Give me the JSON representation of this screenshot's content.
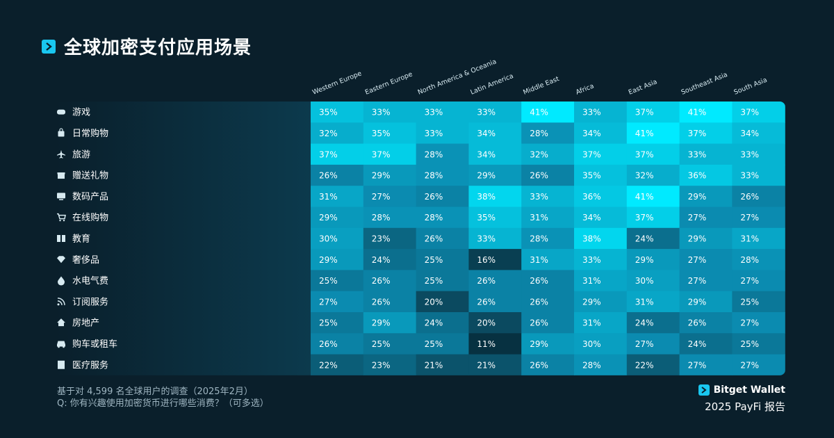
{
  "title": "全球加密支付应用场景",
  "chart_data": {
    "type": "heatmap",
    "columns": [
      "Western Europe",
      "Eastern Europe",
      "North America & Oceania",
      "Latin America",
      "Middle East",
      "Africa",
      "East Asia",
      "Southeast Asia",
      "South Asia"
    ],
    "rows": [
      {
        "label": "游戏",
        "icon": "gamepad-icon",
        "values": [
          35,
          33,
          33,
          33,
          41,
          33,
          37,
          41,
          37
        ]
      },
      {
        "label": "日常购物",
        "icon": "shopping-bag-icon",
        "values": [
          32,
          35,
          33,
          34,
          28,
          34,
          41,
          37,
          34
        ]
      },
      {
        "label": "旅游",
        "icon": "airplane-icon",
        "values": [
          37,
          37,
          28,
          34,
          32,
          37,
          37,
          33,
          33
        ]
      },
      {
        "label": "赠送礼物",
        "icon": "gift-icon",
        "values": [
          26,
          29,
          28,
          29,
          26,
          35,
          32,
          36,
          33
        ]
      },
      {
        "label": "数码产品",
        "icon": "monitor-icon",
        "values": [
          31,
          27,
          26,
          38,
          33,
          36,
          41,
          29,
          26
        ]
      },
      {
        "label": "在线购物",
        "icon": "cart-icon",
        "values": [
          29,
          28,
          28,
          35,
          31,
          34,
          37,
          27,
          27
        ]
      },
      {
        "label": "教育",
        "icon": "book-icon",
        "values": [
          30,
          23,
          26,
          33,
          28,
          38,
          24,
          29,
          31
        ]
      },
      {
        "label": "奢侈品",
        "icon": "diamond-icon",
        "values": [
          29,
          24,
          25,
          16,
          31,
          33,
          29,
          27,
          28
        ]
      },
      {
        "label": "水电气费",
        "icon": "droplet-icon",
        "values": [
          25,
          26,
          25,
          26,
          26,
          31,
          30,
          27,
          27
        ]
      },
      {
        "label": "订阅服务",
        "icon": "rss-icon",
        "values": [
          27,
          26,
          20,
          26,
          26,
          29,
          31,
          29,
          25
        ]
      },
      {
        "label": "房地产",
        "icon": "house-icon",
        "values": [
          25,
          29,
          24,
          20,
          26,
          31,
          24,
          26,
          27
        ]
      },
      {
        "label": "购车或租车",
        "icon": "car-icon",
        "values": [
          26,
          25,
          25,
          11,
          29,
          30,
          27,
          24,
          25
        ]
      },
      {
        "label": "医疗服务",
        "icon": "hospital-icon",
        "values": [
          22,
          23,
          21,
          21,
          26,
          28,
          22,
          27,
          27
        ]
      }
    ],
    "value_suffix": "%",
    "color_scale": {
      "low": "#0b4a60",
      "mid": "#0b8bb0",
      "high": "#00eaff"
    }
  },
  "footer": {
    "line1": "基于对 4,599 名全球用户的调查（2025年2月）",
    "line2": "Q: 你有兴趣使用加密货币进行哪些消费？（可多选）",
    "brand": "Bitget Wallet",
    "report": "2025 PayFi 报告"
  }
}
